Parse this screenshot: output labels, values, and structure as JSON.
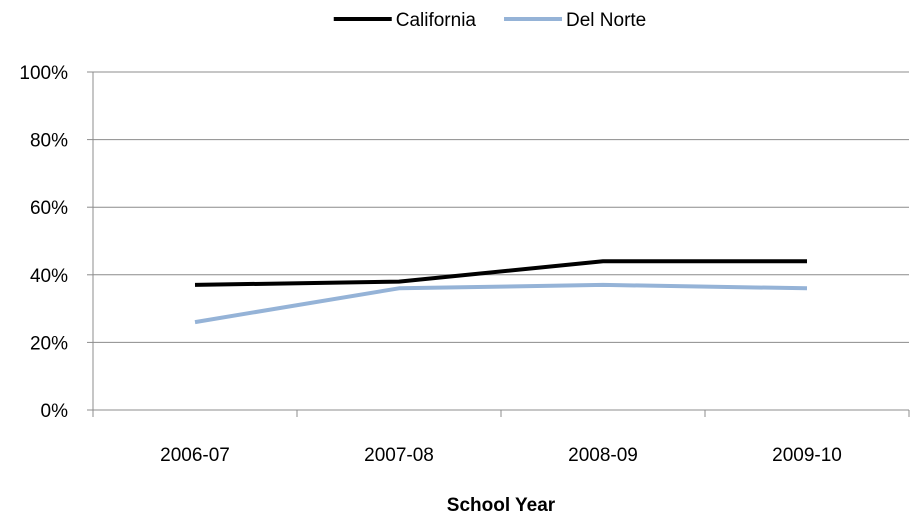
{
  "chart_data": {
    "type": "line",
    "title": "",
    "xlabel": "School Year",
    "ylabel": "",
    "categories": [
      "2006-07",
      "2007-08",
      "2008-09",
      "2009-10"
    ],
    "ylim": [
      0,
      100
    ],
    "yticks": [
      "0%",
      "20%",
      "40%",
      "60%",
      "80%",
      "100%"
    ],
    "ytick_values": [
      0,
      20,
      40,
      60,
      80,
      100
    ],
    "grid": true,
    "legend_position": "top",
    "series": [
      {
        "name": "California",
        "values": [
          37,
          38,
          44,
          44
        ],
        "color": "#000000"
      },
      {
        "name": "Del Norte",
        "values": [
          26,
          36,
          37,
          36
        ],
        "color": "#95b3d7"
      }
    ]
  }
}
